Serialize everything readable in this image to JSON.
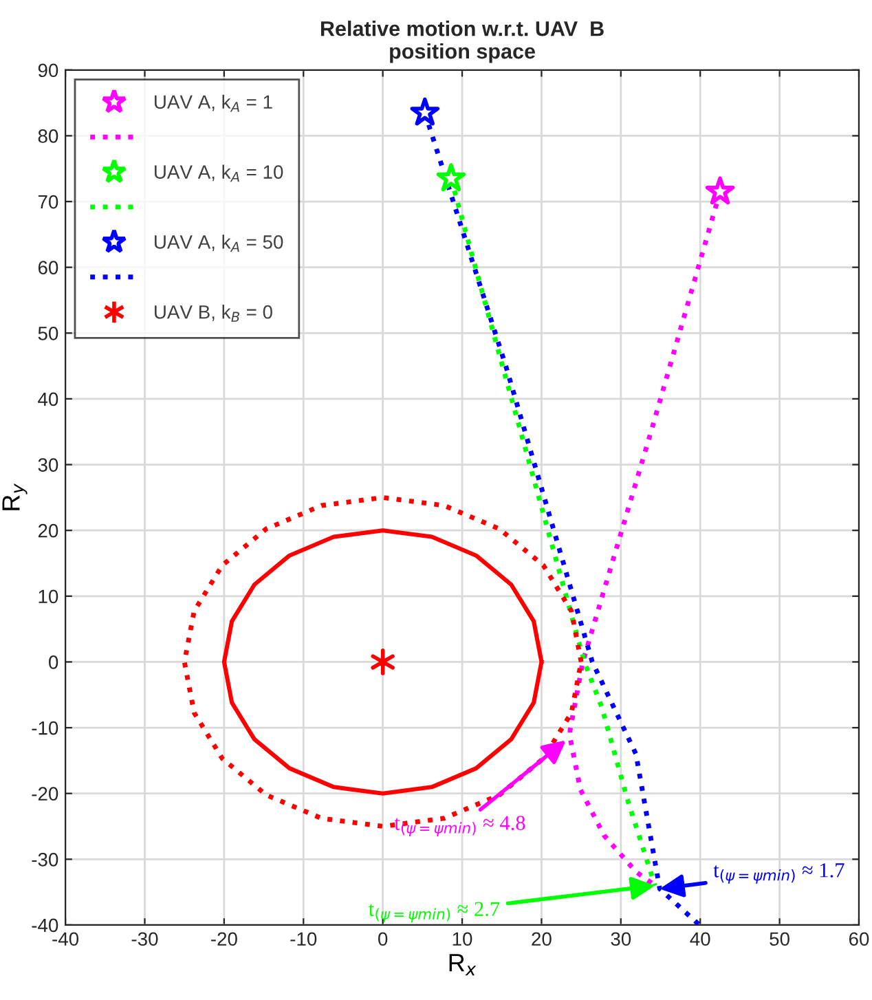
{
  "chart_data": {
    "type": "line",
    "title": "Relative motion w.r.t. UAV  B",
    "subtitle": "position space",
    "xlabel": "R$_{x}$",
    "ylabel": "R$_{y}$",
    "xlim": [
      -40,
      60
    ],
    "xticks": [
      -40,
      -30,
      -20,
      -10,
      0,
      10,
      20,
      30,
      40,
      50,
      60
    ],
    "ylim": [
      -40,
      90
    ],
    "yticks": [
      -40,
      -30,
      -20,
      -10,
      0,
      10,
      20,
      30,
      40,
      50,
      60,
      70,
      80,
      90
    ],
    "grid": true,
    "legend": "top left",
    "series": [
      {
        "type": "scatter",
        "name": "UAV A, k$_{A}$ = 1",
        "color": "#ff00ff",
        "marker": "star",
        "x": [
          42.5
        ],
        "values": [
          71.5
        ]
      },
      {
        "color": "#ff00ff",
        "line_style": "dotted",
        "x": [
          42.5,
          33.8,
          25.2,
          23.6,
          23.6,
          24.9,
          27.9,
          31.9,
          34.3
        ],
        "values": [
          71.5,
          35.0,
          0.0,
          -10.4,
          -11.5,
          -19.4,
          -26.4,
          -31.9,
          -34.0
        ]
      },
      {
        "type": "scatter",
        "name": "UAV A, k$_{A}$ = 10",
        "color": "#00ff00",
        "marker": "star",
        "x": [
          8.6
        ],
        "values": [
          73.5
        ]
      },
      {
        "color": "#00ff00",
        "line_style": "dotted",
        "x": [
          8.6,
          14.9,
          25.4,
          27.6,
          30.8,
          34.3
        ],
        "values": [
          73.5,
          45.8,
          0.0,
          -6.9,
          -20.8,
          -34.0
        ]
      },
      {
        "type": "scatter",
        "name": "UAV A, k$_{A}$ = 50",
        "color": "#0000ff",
        "marker": "star",
        "x": [
          5.3
        ],
        "values": [
          83.5
        ]
      },
      {
        "color": "#0000ff",
        "line_style": "dotted",
        "x": [
          5.3,
          15.5,
          26.4,
          31.9,
          34.9,
          39.9
        ],
        "values": [
          83.5,
          45.0,
          0.0,
          -14.0,
          -34.5,
          -40.0
        ]
      },
      {
        "type": "scatter",
        "name": "UAV B, k$_{B}$ = 0",
        "color": "#ff0000",
        "marker": "cross",
        "x": [
          0
        ],
        "values": [
          0
        ]
      }
    ],
    "annotations": [
      {
        "text": "t$_{(ψ=ψmin)}$ ≈ 4.8",
        "x": 23.1,
        "y": -11.9
      },
      {
        "text": "t$_{(ψ=ψmin)}$ ≈ 2.7",
        "x": 34.3,
        "y": -34.0
      },
      {
        "text": "t$_{(ψ=ψmin)}$ ≈ 1.7",
        "x": 34.9,
        "y": -34.5
      }
    ]
  }
}
